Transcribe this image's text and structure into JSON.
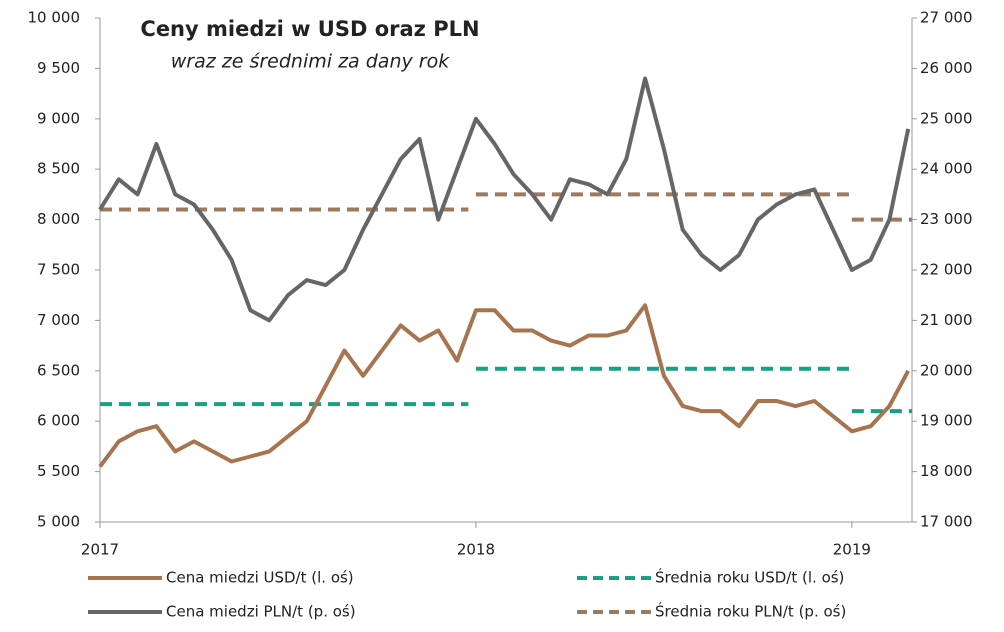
{
  "chart_data": {
    "type": "line",
    "title": "Ceny miedzi w USD oraz PLN",
    "subtitle": "wraz ze średnimi za dany rok",
    "x": [
      2017,
      2017.05,
      2017.1,
      2017.15,
      2017.2,
      2017.25,
      2017.3,
      2017.35,
      2017.4,
      2017.45,
      2017.5,
      2017.55,
      2017.6,
      2017.65,
      2017.7,
      2017.75,
      2017.8,
      2017.85,
      2017.9,
      2017.95,
      2018,
      2018.05,
      2018.1,
      2018.15,
      2018.2,
      2018.25,
      2018.3,
      2018.35,
      2018.4,
      2018.45,
      2018.5,
      2018.55,
      2018.6,
      2018.65,
      2018.7,
      2018.75,
      2018.8,
      2018.85,
      2018.9,
      2018.95,
      2019,
      2019.05,
      2019.1,
      2019.15
    ],
    "xlim": [
      2017,
      2019.16
    ],
    "xticks": [
      2017,
      2018,
      2019
    ],
    "ylim": [
      5000,
      10000
    ],
    "yticks": [
      {
        "value": 5000,
        "label": "5 000"
      },
      {
        "value": 5500,
        "label": "5 500"
      },
      {
        "value": 6000,
        "label": "6 000"
      },
      {
        "value": 6500,
        "label": "6 500"
      },
      {
        "value": 7000,
        "label": "7 000"
      },
      {
        "value": 7500,
        "label": "7 500"
      },
      {
        "value": 8000,
        "label": "8 000"
      },
      {
        "value": 8500,
        "label": "8 500"
      },
      {
        "value": 9000,
        "label": "9 000"
      },
      {
        "value": 9500,
        "label": "9 500"
      },
      {
        "value": 10000,
        "label": "10 000"
      }
    ],
    "y2lim": [
      17000,
      27000
    ],
    "y2ticks": [
      {
        "value": 17000,
        "label": "17 000"
      },
      {
        "value": 18000,
        "label": "18 000"
      },
      {
        "value": 19000,
        "label": "19 000"
      },
      {
        "value": 20000,
        "label": "20 000"
      },
      {
        "value": 21000,
        "label": "21 000"
      },
      {
        "value": 22000,
        "label": "22 000"
      },
      {
        "value": 23000,
        "label": "23 000"
      },
      {
        "value": 24000,
        "label": "24 000"
      },
      {
        "value": 25000,
        "label": "25 000"
      },
      {
        "value": 26000,
        "label": "26 000"
      },
      {
        "value": 27000,
        "label": "27 000"
      }
    ],
    "series": [
      {
        "name": "Cena miedzi USD/t (l. oś)",
        "color": "#a8734f",
        "values": [
          5550,
          5800,
          5900,
          5950,
          5700,
          5800,
          5700,
          5600,
          5650,
          5700,
          5850,
          6000,
          6350,
          6700,
          6450,
          6700,
          6950,
          6800,
          6900,
          6600,
          7100,
          7100,
          6900,
          6900,
          6800,
          6750,
          6850,
          6850,
          6900,
          7150,
          6450,
          6150,
          6100,
          6100,
          5950,
          6200,
          6200,
          6150,
          6200,
          6050,
          5900,
          5950,
          6150,
          6500
        ]
      },
      {
        "name": "Cena miedzi PLN/t (p. oś)",
        "color": "#666666",
        "axis": "y2",
        "values": [
          23200,
          23800,
          23500,
          24500,
          23500,
          23300,
          22800,
          22200,
          21200,
          21000,
          21500,
          21800,
          21700,
          22000,
          22800,
          23500,
          24200,
          24600,
          23000,
          24000,
          25000,
          24500,
          23900,
          23500,
          23000,
          23800,
          23700,
          23500,
          24200,
          25800,
          24400,
          22800,
          22300,
          22000,
          22300,
          23000,
          23300,
          23500,
          23600,
          22800,
          22000,
          22200,
          23000,
          24800
        ]
      }
    ],
    "averages": [
      {
        "name": "Średnia roku USD/t (l. oś)",
        "color": "#17a085",
        "values": [
          6170,
          6520,
          6100
        ],
        "periods": [
          [
            2017,
            2017.98
          ],
          [
            2018,
            2019
          ],
          [
            2019,
            2019.16
          ]
        ]
      },
      {
        "name": "Średnia roku PLN/t (p. oś)",
        "color": "#9c7a60",
        "axis": "y2",
        "values": [
          23200,
          23500,
          23000
        ],
        "periods": [
          [
            2017,
            2017.98
          ],
          [
            2018,
            2019
          ],
          [
            2019,
            2019.16
          ]
        ]
      }
    ]
  }
}
